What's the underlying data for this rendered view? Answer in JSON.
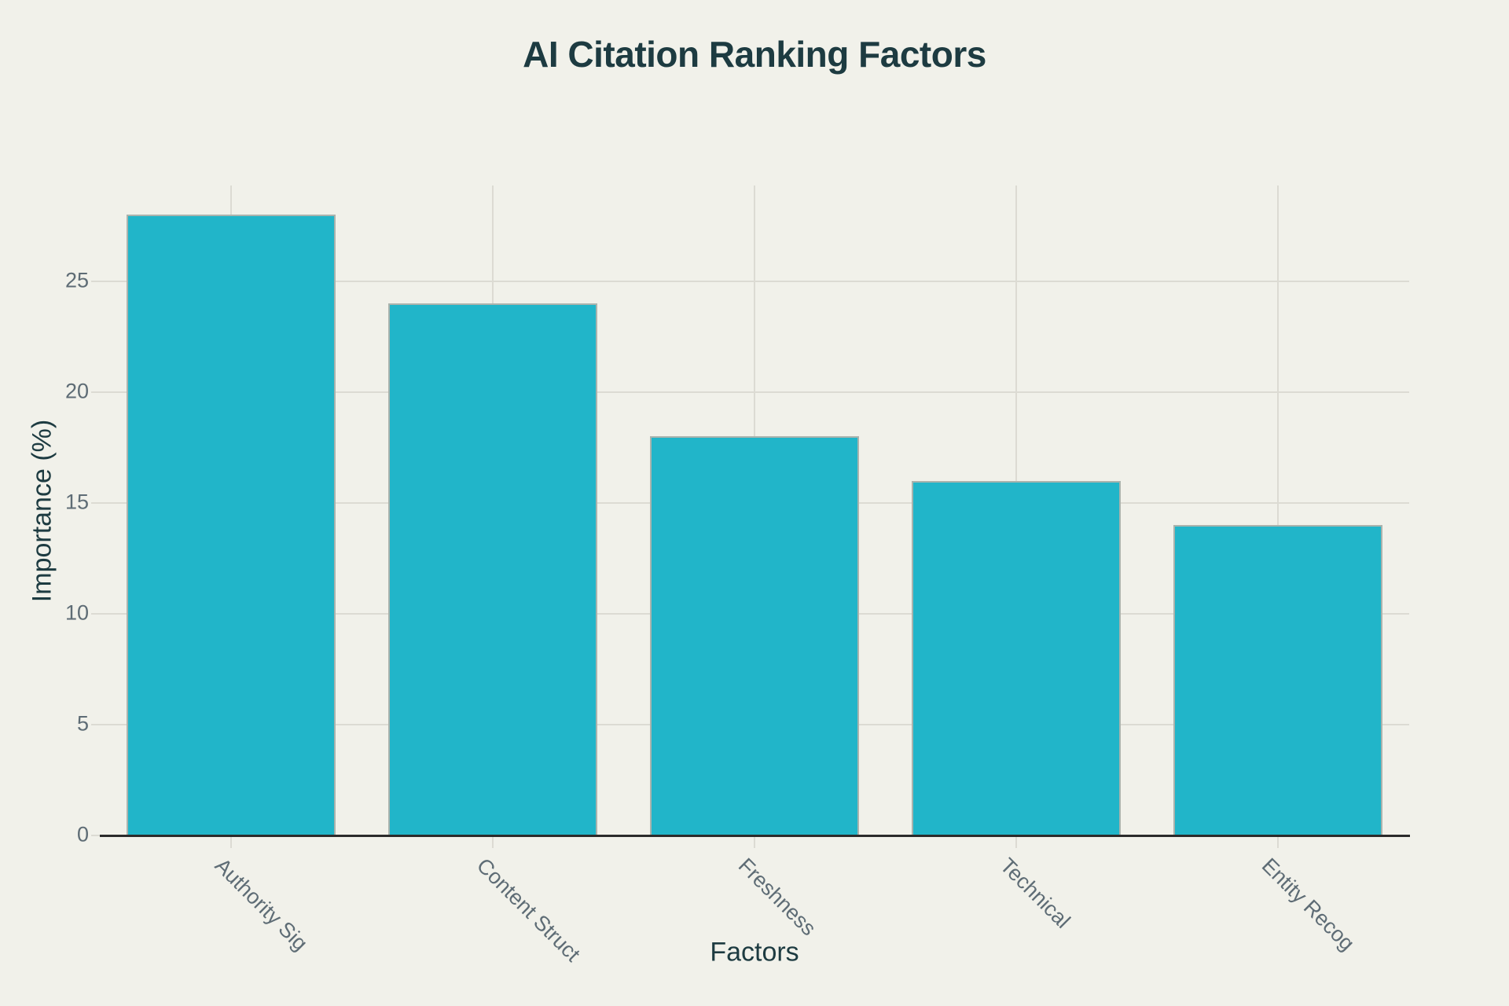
{
  "chart_data": {
    "type": "bar",
    "title": "AI Citation Ranking Factors",
    "xlabel": "Factors",
    "ylabel": "Importance (%)",
    "categories": [
      "Authority Sig",
      "Content Struct",
      "Freshness",
      "Technical",
      "Entity Recog"
    ],
    "values": [
      28,
      24,
      18,
      16,
      14
    ],
    "yticks": [
      0,
      5,
      10,
      15,
      20,
      25
    ],
    "ylim": [
      0,
      29.4
    ],
    "grid": true,
    "legend_position": "none",
    "bar_width_fraction": 0.8,
    "colors": {
      "bar": "#21b5c9",
      "bar_edge": "#aab3ad",
      "background": "#f1f1ea",
      "grid": "#dcdbd3",
      "axis_line": "#2b2b2b",
      "tick_label": "#5e6c75",
      "axis_title": "#1d3b41",
      "title": "#1d3b41"
    }
  }
}
